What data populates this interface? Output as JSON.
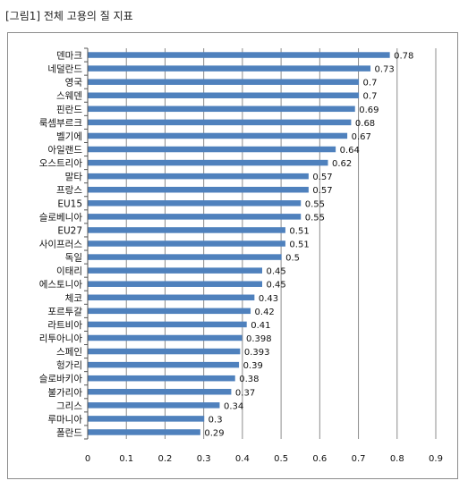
{
  "figure": {
    "title": "[그림1] 전체 고용의 질 지표"
  },
  "chart_data": {
    "type": "bar",
    "orientation": "horizontal",
    "categories": [
      "덴마크",
      "네덜란드",
      "영국",
      "스웨덴",
      "핀란드",
      "룩셈부르크",
      "벨기에",
      "아일랜드",
      "오스트리아",
      "말타",
      "프랑스",
      "EU15",
      "슬로베니아",
      "EU27",
      "사이프러스",
      "독일",
      "이태리",
      "에스토니아",
      "체코",
      "포르투갈",
      "라트비아",
      "리투아니아",
      "스페인",
      "헝가리",
      "슬로바키아",
      "불가리아",
      "그리스",
      "루마니아",
      "폴란드"
    ],
    "values": [
      0.78,
      0.73,
      0.7,
      0.7,
      0.69,
      0.68,
      0.67,
      0.64,
      0.62,
      0.57,
      0.57,
      0.55,
      0.55,
      0.51,
      0.51,
      0.5,
      0.45,
      0.45,
      0.43,
      0.42,
      0.41,
      0.398,
      0.393,
      0.39,
      0.38,
      0.37,
      0.34,
      0.3,
      0.29
    ],
    "value_labels": [
      "0.78",
      "0.73",
      "0.7",
      "0.7",
      "0.69",
      "0.68",
      "0.67",
      "0.64",
      "0.62",
      "0.57",
      "0.57",
      "0.55",
      "0.55",
      "0.51",
      "0.51",
      "0.5",
      "0.45",
      "0.45",
      "0.43",
      "0.42",
      "0.41",
      "0.398",
      "0.393",
      "0.39",
      "0.38",
      "0.37",
      "0.34",
      "0.3",
      "0.29"
    ],
    "xlim": [
      0,
      0.9
    ],
    "xticks": [
      "0",
      "0.1",
      "0.2",
      "0.3",
      "0.4",
      "0.5",
      "0.6",
      "0.7",
      "0.8",
      "0.9"
    ],
    "grid": true,
    "legend": "none",
    "bar_color": "#4f81bd",
    "grid_color": "#8c8c8c"
  }
}
